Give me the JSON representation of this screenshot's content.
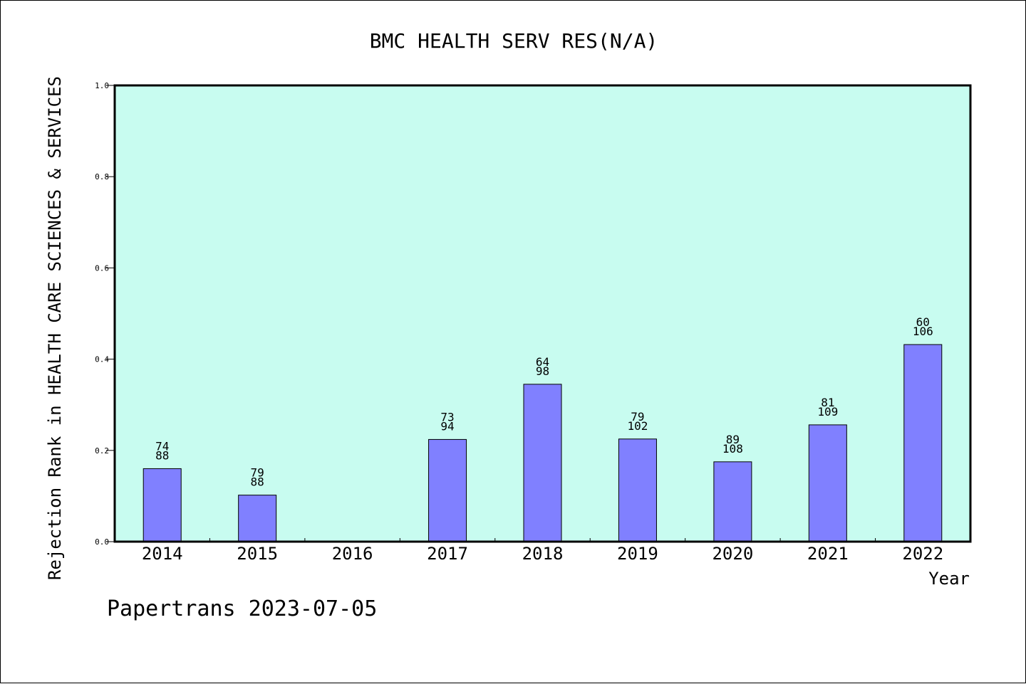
{
  "chart_data": {
    "type": "bar",
    "title": "BMC HEALTH SERV RES(N/A)",
    "xlabel": "Year",
    "ylabel": "Rejection Rank in HEALTH CARE SCIENCES & SERVICES",
    "ylim": [
      0,
      1.0
    ],
    "yticks": [
      "0.0",
      "0.2",
      "0.4",
      "0.6",
      "0.8",
      "1.0"
    ],
    "grid": false,
    "categories": [
      "2014",
      "2015",
      "2016",
      "2017",
      "2018",
      "2019",
      "2020",
      "2021",
      "2022"
    ],
    "values": [
      0.16,
      0.102,
      null,
      0.224,
      0.345,
      0.225,
      0.175,
      0.256,
      0.432
    ],
    "label_top": [
      "74",
      "79",
      "",
      "73",
      "64",
      "79",
      "89",
      "81",
      "60"
    ],
    "label_bottom": [
      "88",
      "88",
      "",
      "94",
      "98",
      "102",
      "108",
      "109",
      "106"
    ],
    "colors": {
      "plot_background": "#c8fcf0",
      "bar_fill": "#8080ff",
      "bar_stroke": "#000000"
    }
  },
  "footer": "Papertrans 2023-07-05"
}
